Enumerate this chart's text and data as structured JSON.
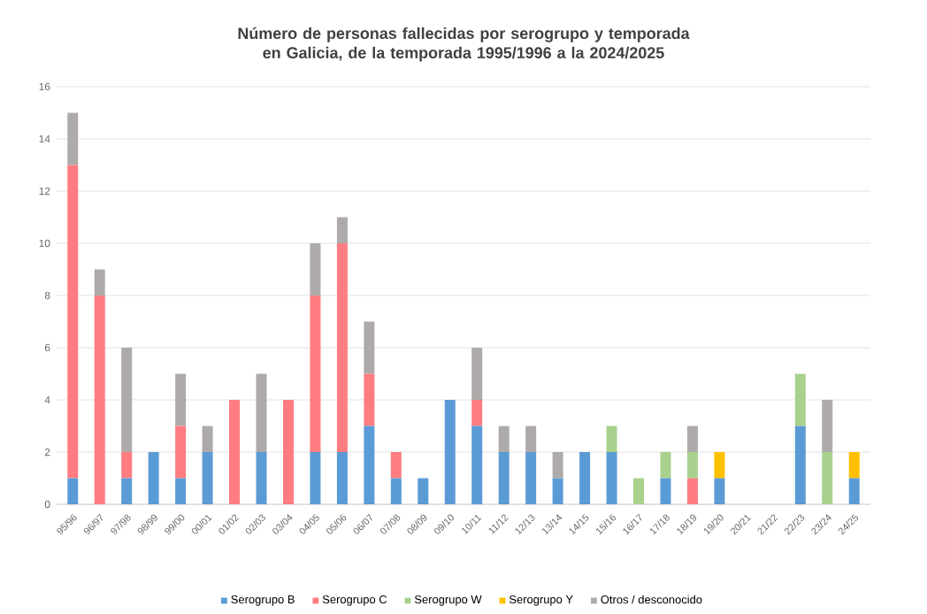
{
  "chart_data": {
    "type": "bar",
    "title": "Número de personas fallecidas por serogrupo y temporada en Galicia, de la temporada 1995/1996 a la 2024/2025",
    "categories": [
      "95/96",
      "96/97",
      "97/98",
      "98/99",
      "99/00",
      "00/01",
      "01/02",
      "02/03",
      "03/04",
      "04/05",
      "05/06",
      "06/07",
      "07/08",
      "08/09",
      "09/10",
      "10/11",
      "11/12",
      "12/13",
      "13/14",
      "14/15",
      "15/16",
      "16/17",
      "17/18",
      "18/19",
      "19/20",
      "20/21",
      "21/22",
      "22/23",
      "23/24",
      "24/25"
    ],
    "stacked": true,
    "ylim": [
      0,
      16
    ],
    "yticks": [
      0,
      2,
      4,
      6,
      8,
      10,
      12,
      14,
      16
    ],
    "grid": "y",
    "legend": "bottom",
    "series": [
      {
        "name": "Serogrupo B",
        "color": "#5b9bd5",
        "values": [
          1,
          0,
          1,
          2,
          1,
          2,
          0,
          2,
          0,
          2,
          2,
          3,
          1,
          1,
          4,
          3,
          2,
          2,
          1,
          2,
          2,
          0,
          1,
          0,
          1,
          0,
          0,
          3,
          0,
          1
        ]
      },
      {
        "name": "Serogrupo C",
        "color": "#ff7c80",
        "values": [
          12,
          8,
          1,
          0,
          2,
          0,
          4,
          0,
          4,
          6,
          8,
          2,
          1,
          0,
          0,
          1,
          0,
          0,
          0,
          0,
          0,
          0,
          0,
          1,
          0,
          0,
          0,
          0,
          0,
          0
        ]
      },
      {
        "name": "Serogrupo W",
        "color": "#a9d18e",
        "values": [
          0,
          0,
          0,
          0,
          0,
          0,
          0,
          0,
          0,
          0,
          0,
          0,
          0,
          0,
          0,
          0,
          0,
          0,
          0,
          0,
          1,
          1,
          1,
          1,
          0,
          0,
          0,
          2,
          2,
          0
        ]
      },
      {
        "name": "Serogrupo Y",
        "color": "#ffc000",
        "values": [
          0,
          0,
          0,
          0,
          0,
          0,
          0,
          0,
          0,
          0,
          0,
          0,
          0,
          0,
          0,
          0,
          0,
          0,
          0,
          0,
          0,
          0,
          0,
          0,
          1,
          0,
          0,
          0,
          0,
          1
        ]
      },
      {
        "name": "Otros / desconocido",
        "color": "#aeaaaa",
        "values": [
          2,
          1,
          4,
          0,
          2,
          1,
          0,
          3,
          0,
          2,
          1,
          2,
          0,
          0,
          0,
          2,
          1,
          1,
          1,
          0,
          0,
          0,
          0,
          1,
          0,
          0,
          0,
          0,
          2,
          0
        ]
      }
    ]
  }
}
